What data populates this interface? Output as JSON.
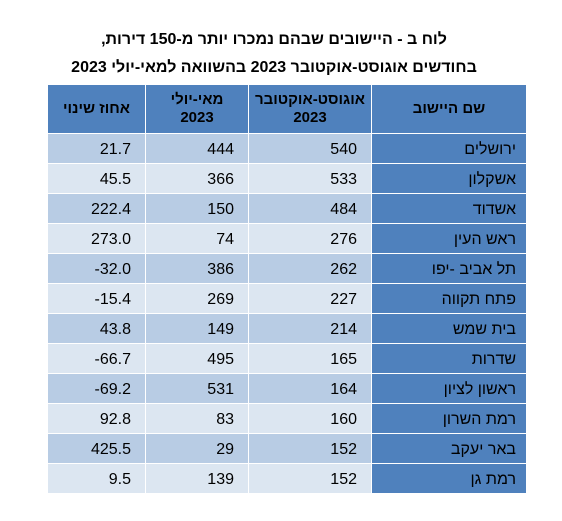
{
  "title_line1": "לוח ב - היישובים שבהם נמכרו יותר מ-150 דירות,",
  "title_line2": "בחודשים אוגוסט-אוקטובר 2023 בהשוואה למאי-יולי 2023",
  "headers": {
    "change": "אחוז שינוי",
    "may_jul": "מאי-יולי 2023",
    "aug_oct": "אוגוסט-אוקטובר 2023",
    "name": "שם היישוב"
  },
  "rows": [
    {
      "name": "ירושלים",
      "aug_oct": "540",
      "may_jul": "444",
      "change": "21.7"
    },
    {
      "name": "אשקלון",
      "aug_oct": "533",
      "may_jul": "366",
      "change": "45.5"
    },
    {
      "name": "אשדוד",
      "aug_oct": "484",
      "may_jul": "150",
      "change": "222.4"
    },
    {
      "name": "ראש העין",
      "aug_oct": "276",
      "may_jul": "74",
      "change": "273.0"
    },
    {
      "name": "תל אביב -יפו",
      "aug_oct": "262",
      "may_jul": "386",
      "change": "-32.0"
    },
    {
      "name": "פתח תקווה",
      "aug_oct": "227",
      "may_jul": "269",
      "change": "-15.4"
    },
    {
      "name": "בית שמש",
      "aug_oct": "214",
      "may_jul": "149",
      "change": "43.8"
    },
    {
      "name": "שדרות",
      "aug_oct": "165",
      "may_jul": "495",
      "change": "-66.7"
    },
    {
      "name": "ראשון לציון",
      "aug_oct": "164",
      "may_jul": "531",
      "change": "-69.2"
    },
    {
      "name": "רמת השרון",
      "aug_oct": "160",
      "may_jul": "83",
      "change": "92.8"
    },
    {
      "name": "באר יעקב",
      "aug_oct": "152",
      "may_jul": "29",
      "change": "425.5"
    },
    {
      "name": "רמת גן",
      "aug_oct": "152",
      "may_jul": "139",
      "change": "9.5"
    }
  ],
  "colors": {
    "header_bg": "#4f81bd",
    "name_col_bg": "#4f81bd",
    "row_dark": "#b8cce4",
    "row_light": "#dce6f1"
  }
}
